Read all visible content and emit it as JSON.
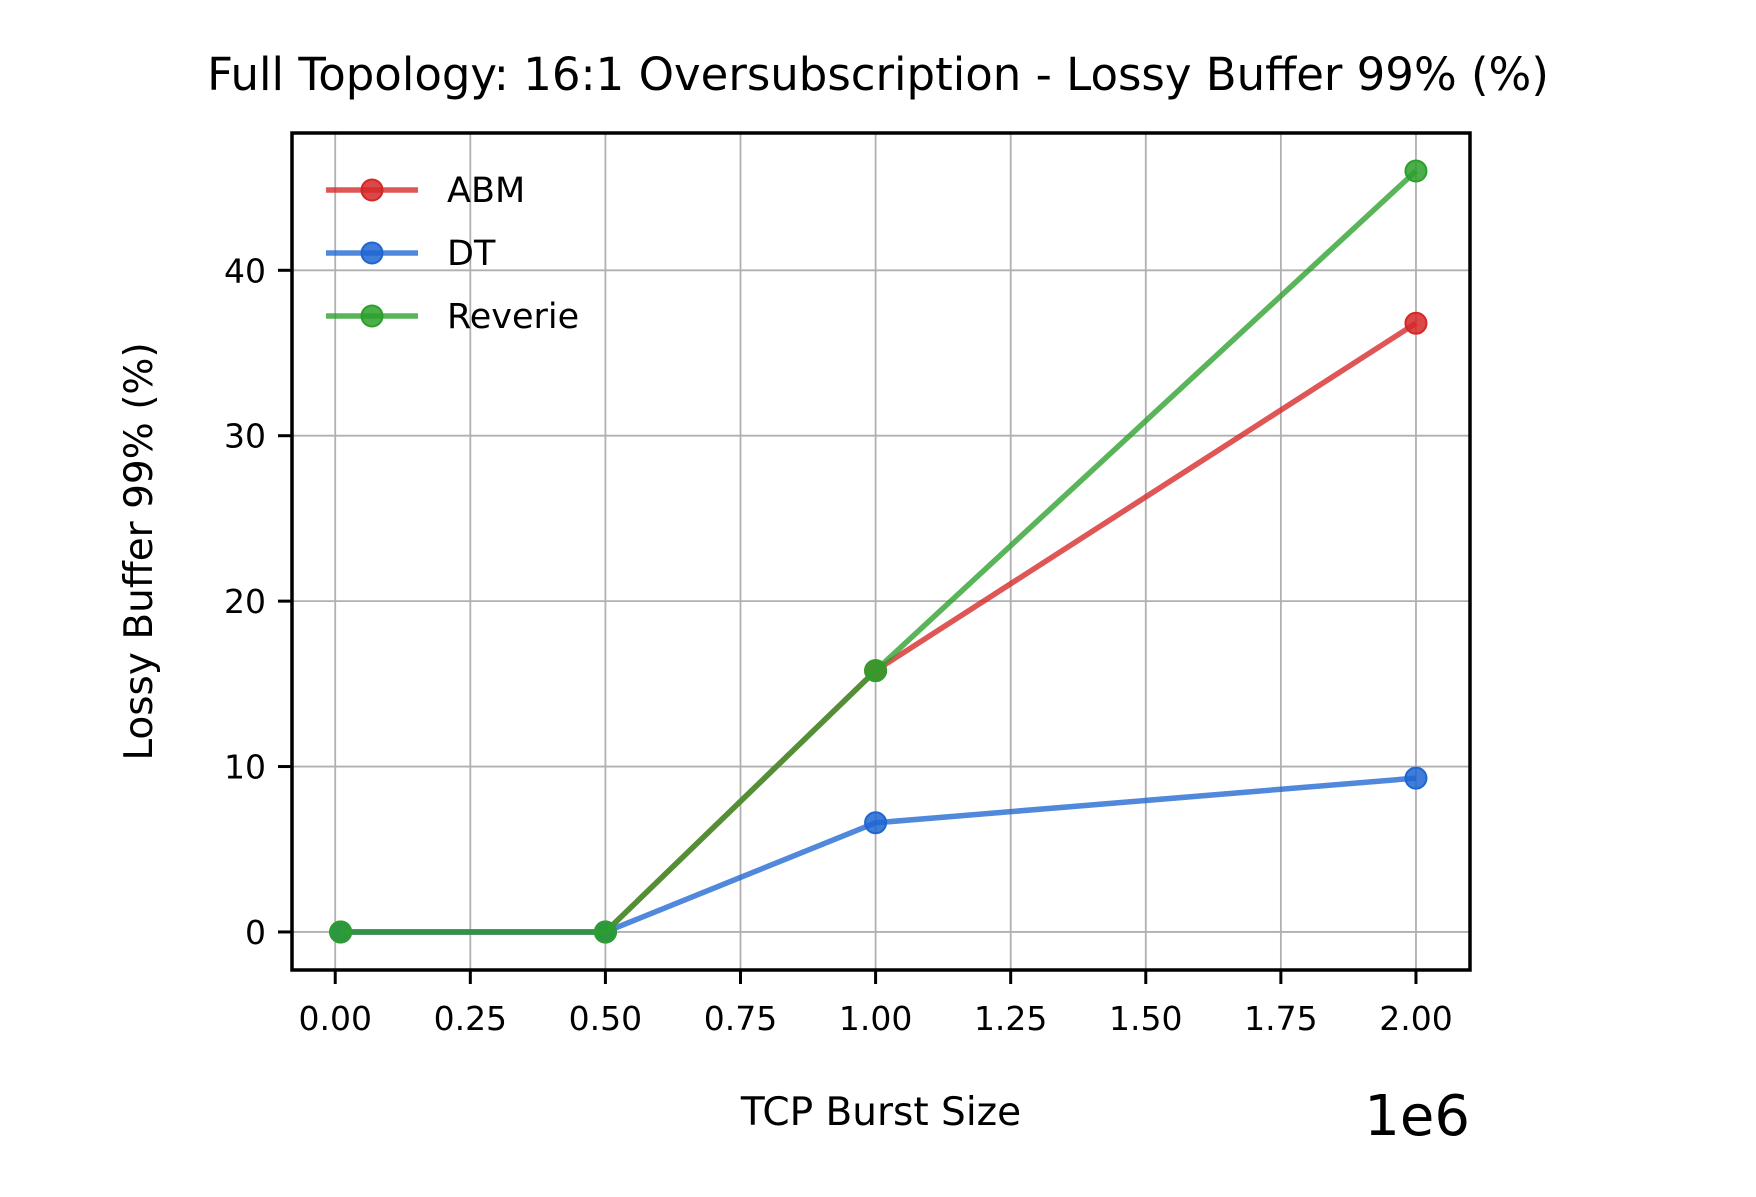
{
  "chart_data": {
    "type": "line",
    "title": "Full Topology: 16:1 Oversubscription - Lossy Buffer 99% (%)",
    "xlabel": "TCP Burst Size",
    "ylabel": "Lossy Buffer 99% (%)",
    "x_offset_text": "1e6",
    "x_multiplier": 1000000,
    "xlim": [
      -0.08,
      2.1
    ],
    "ylim": [
      -2.3,
      48.3
    ],
    "x_ticks": [
      0.0,
      0.25,
      0.5,
      0.75,
      1.0,
      1.25,
      1.5,
      1.75,
      2.0
    ],
    "x_tick_labels": [
      "0.00",
      "0.25",
      "0.50",
      "0.75",
      "1.00",
      "1.25",
      "1.50",
      "1.75",
      "2.00"
    ],
    "y_ticks": [
      0,
      10,
      20,
      30,
      40
    ],
    "y_tick_labels": [
      "0",
      "10",
      "20",
      "30",
      "40"
    ],
    "grid": true,
    "legend_position": "top-left",
    "x": [
      10000,
      500000,
      1000000,
      2000000
    ],
    "series": [
      {
        "name": "ABM",
        "color": "#d62728",
        "values": [
          0,
          0,
          15.8,
          36.8
        ]
      },
      {
        "name": "DT",
        "color": "#1f66d1",
        "values": [
          0,
          0,
          6.6,
          9.3
        ]
      },
      {
        "name": "Reverie",
        "color": "#2ca02c",
        "values": [
          0,
          0,
          15.8,
          46.0
        ]
      }
    ]
  }
}
